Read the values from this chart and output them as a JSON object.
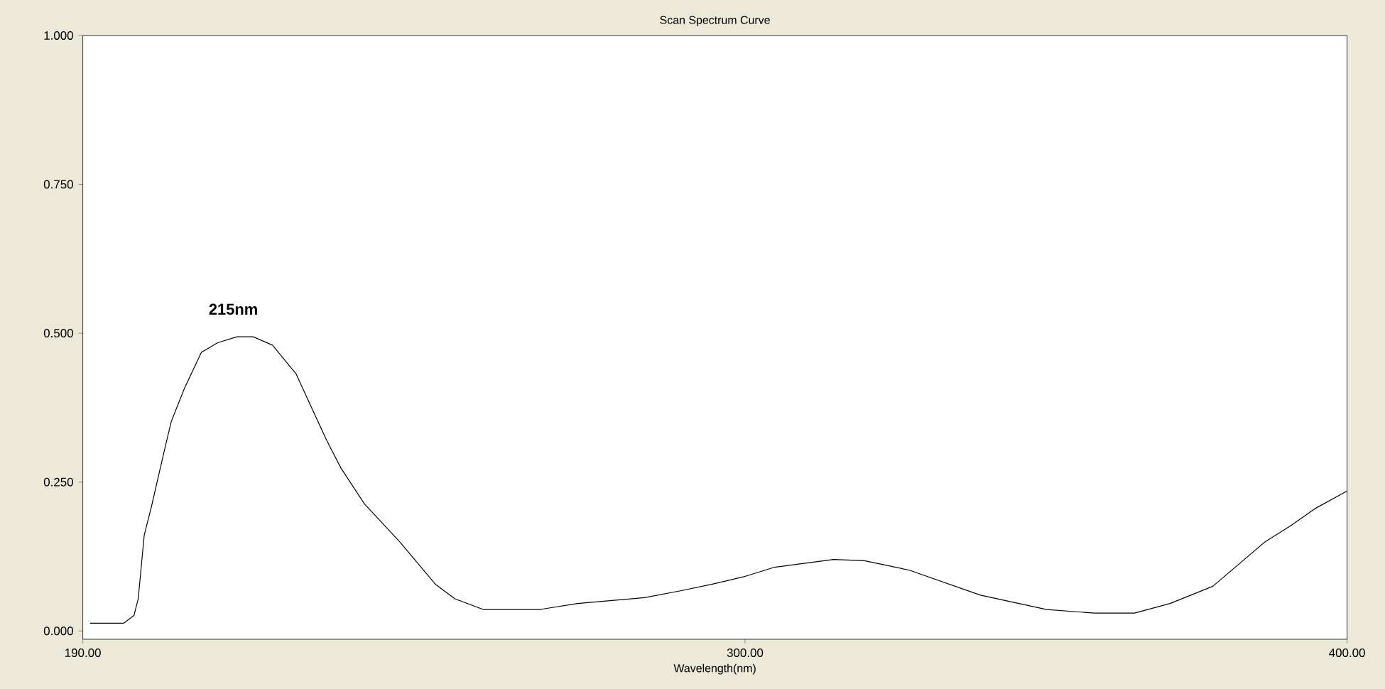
{
  "chart_data": {
    "type": "line",
    "title": "Scan Spectrum Curve",
    "xlabel": "Wavelength(nm)",
    "x": [
      191.2,
      196.8,
      198.5,
      199.2,
      200.2,
      201.4,
      203.4,
      204.7,
      206.9,
      209.7,
      212.4,
      215.6,
      218.3,
      221.5,
      225.4,
      230.5,
      232.9,
      236.8,
      242.7,
      248.6,
      251.8,
      256.5,
      265.9,
      272.2,
      283.3,
      289.6,
      294.3,
      299.8,
      304.9,
      314.7,
      319.8,
      327.3,
      339.1,
      350.1,
      358.0,
      364.7,
      370.6,
      377.7,
      386.3,
      390.7,
      394.6,
      400.0
    ],
    "series": [
      {
        "color": "#000000",
        "values": [
          0.013,
          0.013,
          0.026,
          0.054,
          0.161,
          0.209,
          0.297,
          0.352,
          0.408,
          0.468,
          0.484,
          0.494,
          0.494,
          0.48,
          0.432,
          0.32,
          0.273,
          0.213,
          0.149,
          0.078,
          0.054,
          0.036,
          0.036,
          0.046,
          0.056,
          0.068,
          0.078,
          0.091,
          0.107,
          0.12,
          0.118,
          0.102,
          0.06,
          0.036,
          0.03,
          0.03,
          0.046,
          0.075,
          0.149,
          0.177,
          0.205,
          0.235
        ]
      }
    ],
    "xlim": [
      190,
      400
    ],
    "ylim": [
      -0.014,
      1.0
    ],
    "xticks": [
      {
        "value": 190,
        "label": "190.00"
      },
      {
        "value": 300,
        "label": "300.00"
      },
      {
        "value": 400,
        "label": "400.00"
      }
    ],
    "yticks": [
      {
        "value": 0,
        "label": "0.000"
      },
      {
        "value": 0.25,
        "label": "0.250"
      },
      {
        "value": 0.5,
        "label": "0.500"
      },
      {
        "value": 0.75,
        "label": "0.750"
      },
      {
        "value": 1.0,
        "label": "1.000"
      }
    ],
    "annotations": [
      {
        "text": "215nm",
        "x": 215,
        "y": 0.494
      }
    ],
    "grid": false,
    "marker": "none",
    "line_style": "solid"
  }
}
